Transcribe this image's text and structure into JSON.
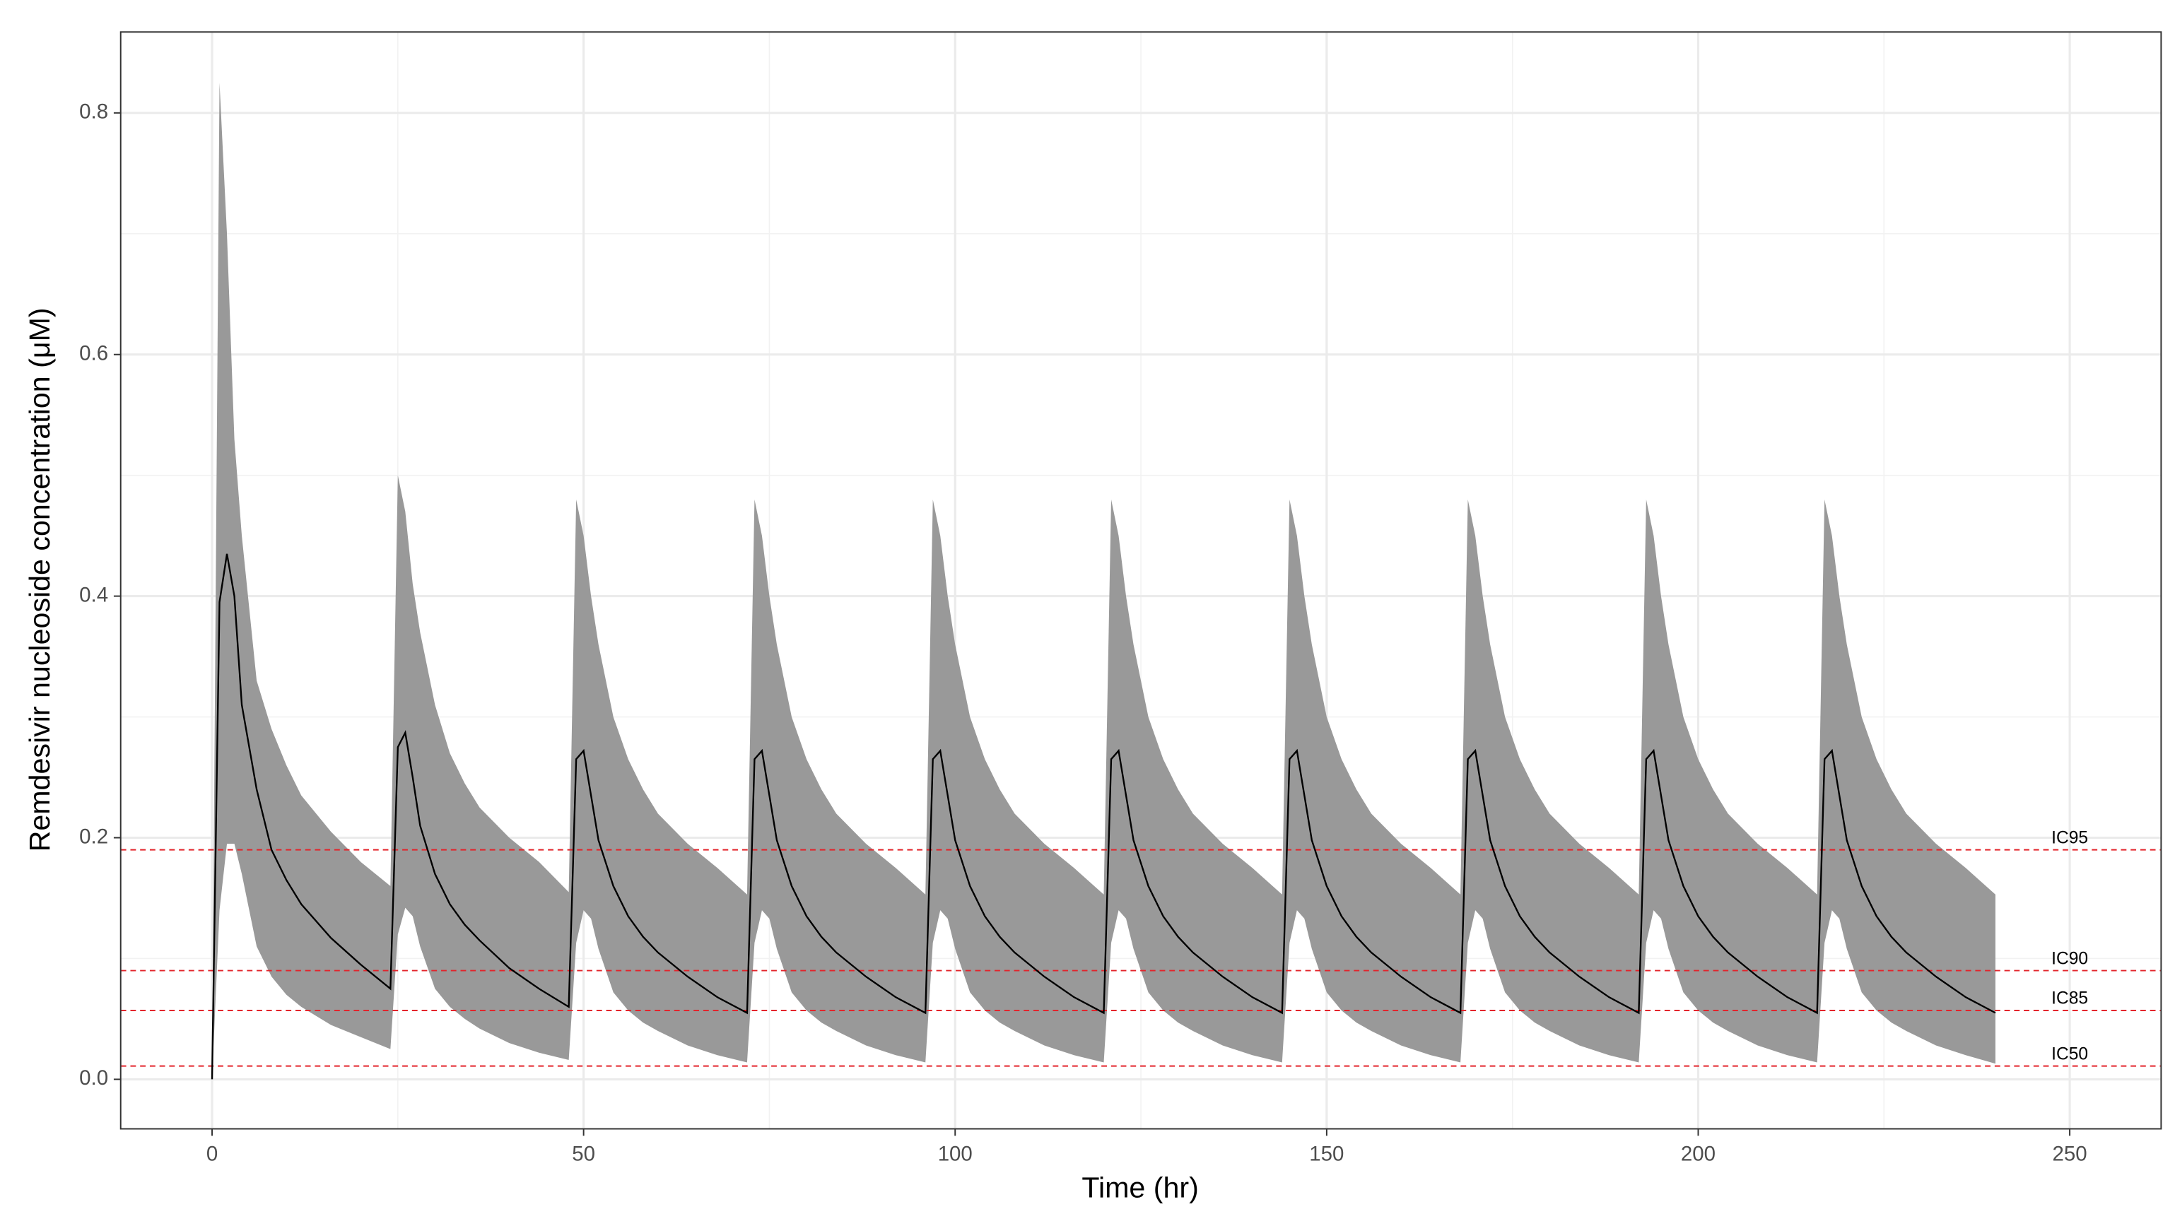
{
  "chart_data": {
    "type": "line_band",
    "xlabel": "Time (hr)",
    "ylabel": "Remdesivir nucleoside concentration (μM)",
    "x": [
      0,
      1,
      2,
      3,
      4,
      6,
      8,
      10,
      12,
      16,
      20,
      24,
      25,
      26,
      27,
      28,
      30,
      32,
      34,
      36,
      40,
      44,
      48,
      49,
      50,
      51,
      52,
      54,
      56,
      58,
      60,
      64,
      68,
      72,
      73,
      74,
      75,
      76,
      78,
      80,
      82,
      84,
      88,
      92,
      96,
      97,
      98,
      99,
      100,
      102,
      104,
      106,
      108,
      112,
      116,
      120,
      121,
      122,
      123,
      124,
      126,
      128,
      130,
      132,
      136,
      140,
      144,
      145,
      146,
      147,
      148,
      150,
      152,
      154,
      156,
      160,
      164,
      168,
      169,
      170,
      171,
      172,
      174,
      176,
      178,
      180,
      184,
      188,
      192,
      193,
      194,
      195,
      196,
      198,
      200,
      202,
      204,
      208,
      212,
      216,
      217,
      218,
      219,
      220,
      222,
      224,
      226,
      228,
      232,
      236,
      240
    ],
    "line": {
      "color": "#000000",
      "values": [
        0,
        0.395,
        0.435,
        0.4,
        0.31,
        0.24,
        0.19,
        0.165,
        0.145,
        0.117,
        0.095,
        0.075,
        0.275,
        0.287,
        0.25,
        0.21,
        0.17,
        0.145,
        0.128,
        0.115,
        0.092,
        0.075,
        0.06,
        0.265,
        0.272,
        0.235,
        0.198,
        0.16,
        0.135,
        0.118,
        0.105,
        0.085,
        0.068,
        0.055,
        0.265,
        0.272,
        0.235,
        0.198,
        0.16,
        0.135,
        0.118,
        0.105,
        0.085,
        0.068,
        0.055,
        0.265,
        0.272,
        0.235,
        0.198,
        0.16,
        0.135,
        0.118,
        0.105,
        0.085,
        0.068,
        0.055,
        0.265,
        0.272,
        0.235,
        0.198,
        0.16,
        0.135,
        0.118,
        0.105,
        0.085,
        0.068,
        0.055,
        0.265,
        0.272,
        0.235,
        0.198,
        0.16,
        0.135,
        0.118,
        0.105,
        0.085,
        0.068,
        0.055,
        0.265,
        0.272,
        0.235,
        0.198,
        0.16,
        0.135,
        0.118,
        0.105,
        0.085,
        0.068,
        0.055,
        0.265,
        0.272,
        0.235,
        0.198,
        0.16,
        0.135,
        0.118,
        0.105,
        0.085,
        0.068,
        0.055,
        0.265,
        0.272,
        0.235,
        0.198,
        0.16,
        0.135,
        0.118,
        0.105,
        0.085,
        0.068,
        0.055
      ]
    },
    "band": {
      "color": "#999999",
      "upper": [
        0,
        0.825,
        0.7,
        0.53,
        0.45,
        0.33,
        0.29,
        0.26,
        0.235,
        0.205,
        0.18,
        0.16,
        0.5,
        0.47,
        0.41,
        0.37,
        0.31,
        0.27,
        0.245,
        0.225,
        0.2,
        0.18,
        0.155,
        0.48,
        0.45,
        0.4,
        0.36,
        0.3,
        0.265,
        0.24,
        0.22,
        0.195,
        0.175,
        0.153,
        0.48,
        0.45,
        0.4,
        0.36,
        0.3,
        0.265,
        0.24,
        0.22,
        0.195,
        0.175,
        0.153,
        0.48,
        0.45,
        0.4,
        0.36,
        0.3,
        0.265,
        0.24,
        0.22,
        0.195,
        0.175,
        0.153,
        0.48,
        0.45,
        0.4,
        0.36,
        0.3,
        0.265,
        0.24,
        0.22,
        0.195,
        0.175,
        0.153,
        0.48,
        0.45,
        0.4,
        0.36,
        0.3,
        0.265,
        0.24,
        0.22,
        0.195,
        0.175,
        0.153,
        0.48,
        0.45,
        0.4,
        0.36,
        0.3,
        0.265,
        0.24,
        0.22,
        0.195,
        0.175,
        0.153,
        0.48,
        0.45,
        0.4,
        0.36,
        0.3,
        0.265,
        0.24,
        0.22,
        0.195,
        0.175,
        0.153,
        0.48,
        0.45,
        0.4,
        0.36,
        0.3,
        0.265,
        0.24,
        0.22,
        0.195,
        0.175,
        0.153
      ],
      "lower": [
        0,
        0.14,
        0.195,
        0.195,
        0.17,
        0.11,
        0.085,
        0.07,
        0.06,
        0.045,
        0.035,
        0.025,
        0.12,
        0.142,
        0.135,
        0.11,
        0.075,
        0.06,
        0.05,
        0.042,
        0.03,
        0.022,
        0.016,
        0.113,
        0.14,
        0.133,
        0.108,
        0.072,
        0.057,
        0.047,
        0.04,
        0.028,
        0.02,
        0.014,
        0.113,
        0.14,
        0.133,
        0.108,
        0.072,
        0.057,
        0.047,
        0.04,
        0.028,
        0.02,
        0.014,
        0.113,
        0.14,
        0.133,
        0.108,
        0.072,
        0.057,
        0.047,
        0.04,
        0.028,
        0.02,
        0.014,
        0.113,
        0.14,
        0.133,
        0.108,
        0.072,
        0.057,
        0.047,
        0.04,
        0.028,
        0.02,
        0.014,
        0.113,
        0.14,
        0.133,
        0.108,
        0.072,
        0.057,
        0.047,
        0.04,
        0.028,
        0.02,
        0.014,
        0.113,
        0.14,
        0.133,
        0.108,
        0.072,
        0.057,
        0.047,
        0.04,
        0.028,
        0.02,
        0.014,
        0.113,
        0.14,
        0.133,
        0.108,
        0.072,
        0.057,
        0.047,
        0.04,
        0.028,
        0.02,
        0.014,
        0.113,
        0.14,
        0.133,
        0.108,
        0.072,
        0.057,
        0.047,
        0.04,
        0.028,
        0.02,
        0.013
      ]
    },
    "hlines": [
      {
        "value": 0.19,
        "label": "IC95"
      },
      {
        "value": 0.09,
        "label": "IC90"
      },
      {
        "value": 0.057,
        "label": "IC85"
      },
      {
        "value": 0.011,
        "label": "IC50"
      }
    ],
    "hline_color": "#e3242b",
    "xlim": [
      -12.3,
      262.3
    ],
    "ylim": [
      -0.041,
      0.867
    ],
    "xticks": [
      0,
      50,
      100,
      150,
      200,
      250
    ],
    "yticks": [
      {
        "value": 0,
        "label": "0.0"
      },
      {
        "value": 0.2,
        "label": "0.2"
      },
      {
        "value": 0.4,
        "label": "0.4"
      },
      {
        "value": 0.6,
        "label": "0.6"
      },
      {
        "value": 0.8,
        "label": "0.8"
      }
    ],
    "xminor": [
      25,
      75,
      125,
      175,
      225
    ],
    "yminor": [
      0.1,
      0.3,
      0.5,
      0.7
    ],
    "grid": true
  }
}
